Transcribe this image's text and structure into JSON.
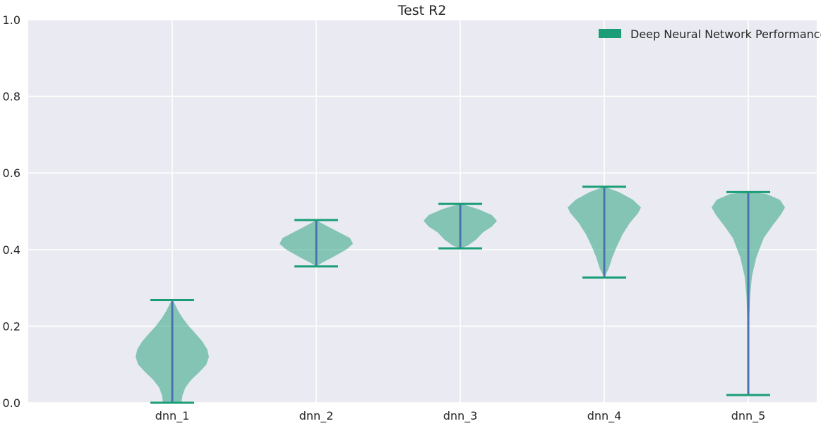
{
  "chart_data": {
    "type": "violin",
    "title": "Test R2",
    "xlabel": "",
    "ylabel": "",
    "categories": [
      "dnn_1",
      "dnn_2",
      "dnn_3",
      "dnn_4",
      "dnn_5"
    ],
    "ylim": [
      0,
      1.0
    ],
    "yticks": [
      "0.0",
      "0.2",
      "0.4",
      "0.6",
      "0.8",
      "1.0"
    ],
    "grid": true,
    "legend": {
      "placement": "top-right",
      "entries": [
        "Deep Neural Network Performance"
      ]
    },
    "series": [
      {
        "name": "Deep Neural Network Performance",
        "color": "#1b9e77",
        "stats": [
          {
            "min": 0.0,
            "max": 0.268
          },
          {
            "min": 0.356,
            "max": 0.477
          },
          {
            "min": 0.403,
            "max": 0.519
          },
          {
            "min": 0.327,
            "max": 0.564
          },
          {
            "min": 0.02,
            "max": 0.55
          }
        ],
        "density": [
          [
            [
              0.0,
              0.25
            ],
            [
              0.02,
              0.28
            ],
            [
              0.04,
              0.36
            ],
            [
              0.06,
              0.52
            ],
            [
              0.08,
              0.74
            ],
            [
              0.1,
              0.93
            ],
            [
              0.12,
              1.0
            ],
            [
              0.14,
              0.95
            ],
            [
              0.16,
              0.82
            ],
            [
              0.18,
              0.64
            ],
            [
              0.2,
              0.45
            ],
            [
              0.22,
              0.29
            ],
            [
              0.24,
              0.16
            ],
            [
              0.26,
              0.06
            ],
            [
              0.268,
              0.0
            ]
          ],
          [
            [
              0.356,
              0.0
            ],
            [
              0.365,
              0.15
            ],
            [
              0.38,
              0.45
            ],
            [
              0.4,
              0.82
            ],
            [
              0.415,
              1.0
            ],
            [
              0.43,
              0.92
            ],
            [
              0.445,
              0.62
            ],
            [
              0.46,
              0.32
            ],
            [
              0.47,
              0.12
            ],
            [
              0.477,
              0.0
            ]
          ],
          [
            [
              0.403,
              0.0
            ],
            [
              0.41,
              0.2
            ],
            [
              0.425,
              0.42
            ],
            [
              0.445,
              0.62
            ],
            [
              0.46,
              0.86
            ],
            [
              0.475,
              1.0
            ],
            [
              0.49,
              0.86
            ],
            [
              0.505,
              0.5
            ],
            [
              0.514,
              0.2
            ],
            [
              0.519,
              0.0
            ]
          ],
          [
            [
              0.327,
              0.0
            ],
            [
              0.35,
              0.12
            ],
            [
              0.38,
              0.22
            ],
            [
              0.41,
              0.35
            ],
            [
              0.44,
              0.5
            ],
            [
              0.47,
              0.7
            ],
            [
              0.495,
              0.92
            ],
            [
              0.51,
              1.0
            ],
            [
              0.53,
              0.78
            ],
            [
              0.55,
              0.4
            ],
            [
              0.564,
              0.0
            ]
          ],
          [
            [
              0.02,
              0.0
            ],
            [
              0.1,
              0.002
            ],
            [
              0.2,
              0.02
            ],
            [
              0.28,
              0.05
            ],
            [
              0.33,
              0.1
            ],
            [
              0.38,
              0.22
            ],
            [
              0.43,
              0.42
            ],
            [
              0.46,
              0.64
            ],
            [
              0.49,
              0.88
            ],
            [
              0.51,
              1.0
            ],
            [
              0.53,
              0.86
            ],
            [
              0.545,
              0.5
            ],
            [
              0.55,
              0.0
            ]
          ]
        ]
      }
    ]
  }
}
